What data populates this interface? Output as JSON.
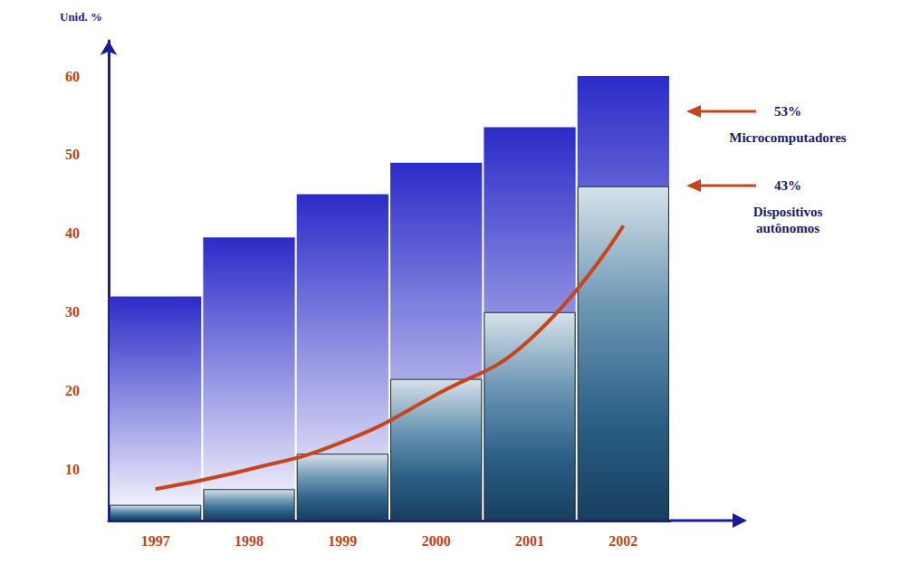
{
  "chart_data": {
    "type": "bar",
    "y_label": "Unid. %",
    "categories": [
      "1997",
      "1998",
      "1999",
      "2000",
      "2001",
      "2002"
    ],
    "ylim": [
      3.5,
      64.5
    ],
    "yticks": [
      10,
      20,
      30,
      40,
      50,
      60
    ],
    "grid": false,
    "series": [
      {
        "name": "Microcomputadores",
        "color": "#2b2bc8",
        "values": [
          32,
          39.5,
          45,
          49,
          53.5,
          60
        ]
      },
      {
        "name": "Dispositivos autônomos",
        "color": "#2a5f86",
        "values": [
          5.5,
          7.5,
          12,
          21.5,
          30,
          46
        ]
      },
      {
        "type": "line",
        "color": "#c8441a",
        "values": [
          7.5,
          10,
          13.5,
          19.5,
          26.5,
          41
        ]
      }
    ],
    "annotations": [
      {
        "text": "53%"
      },
      {
        "text": "43%"
      }
    ]
  }
}
